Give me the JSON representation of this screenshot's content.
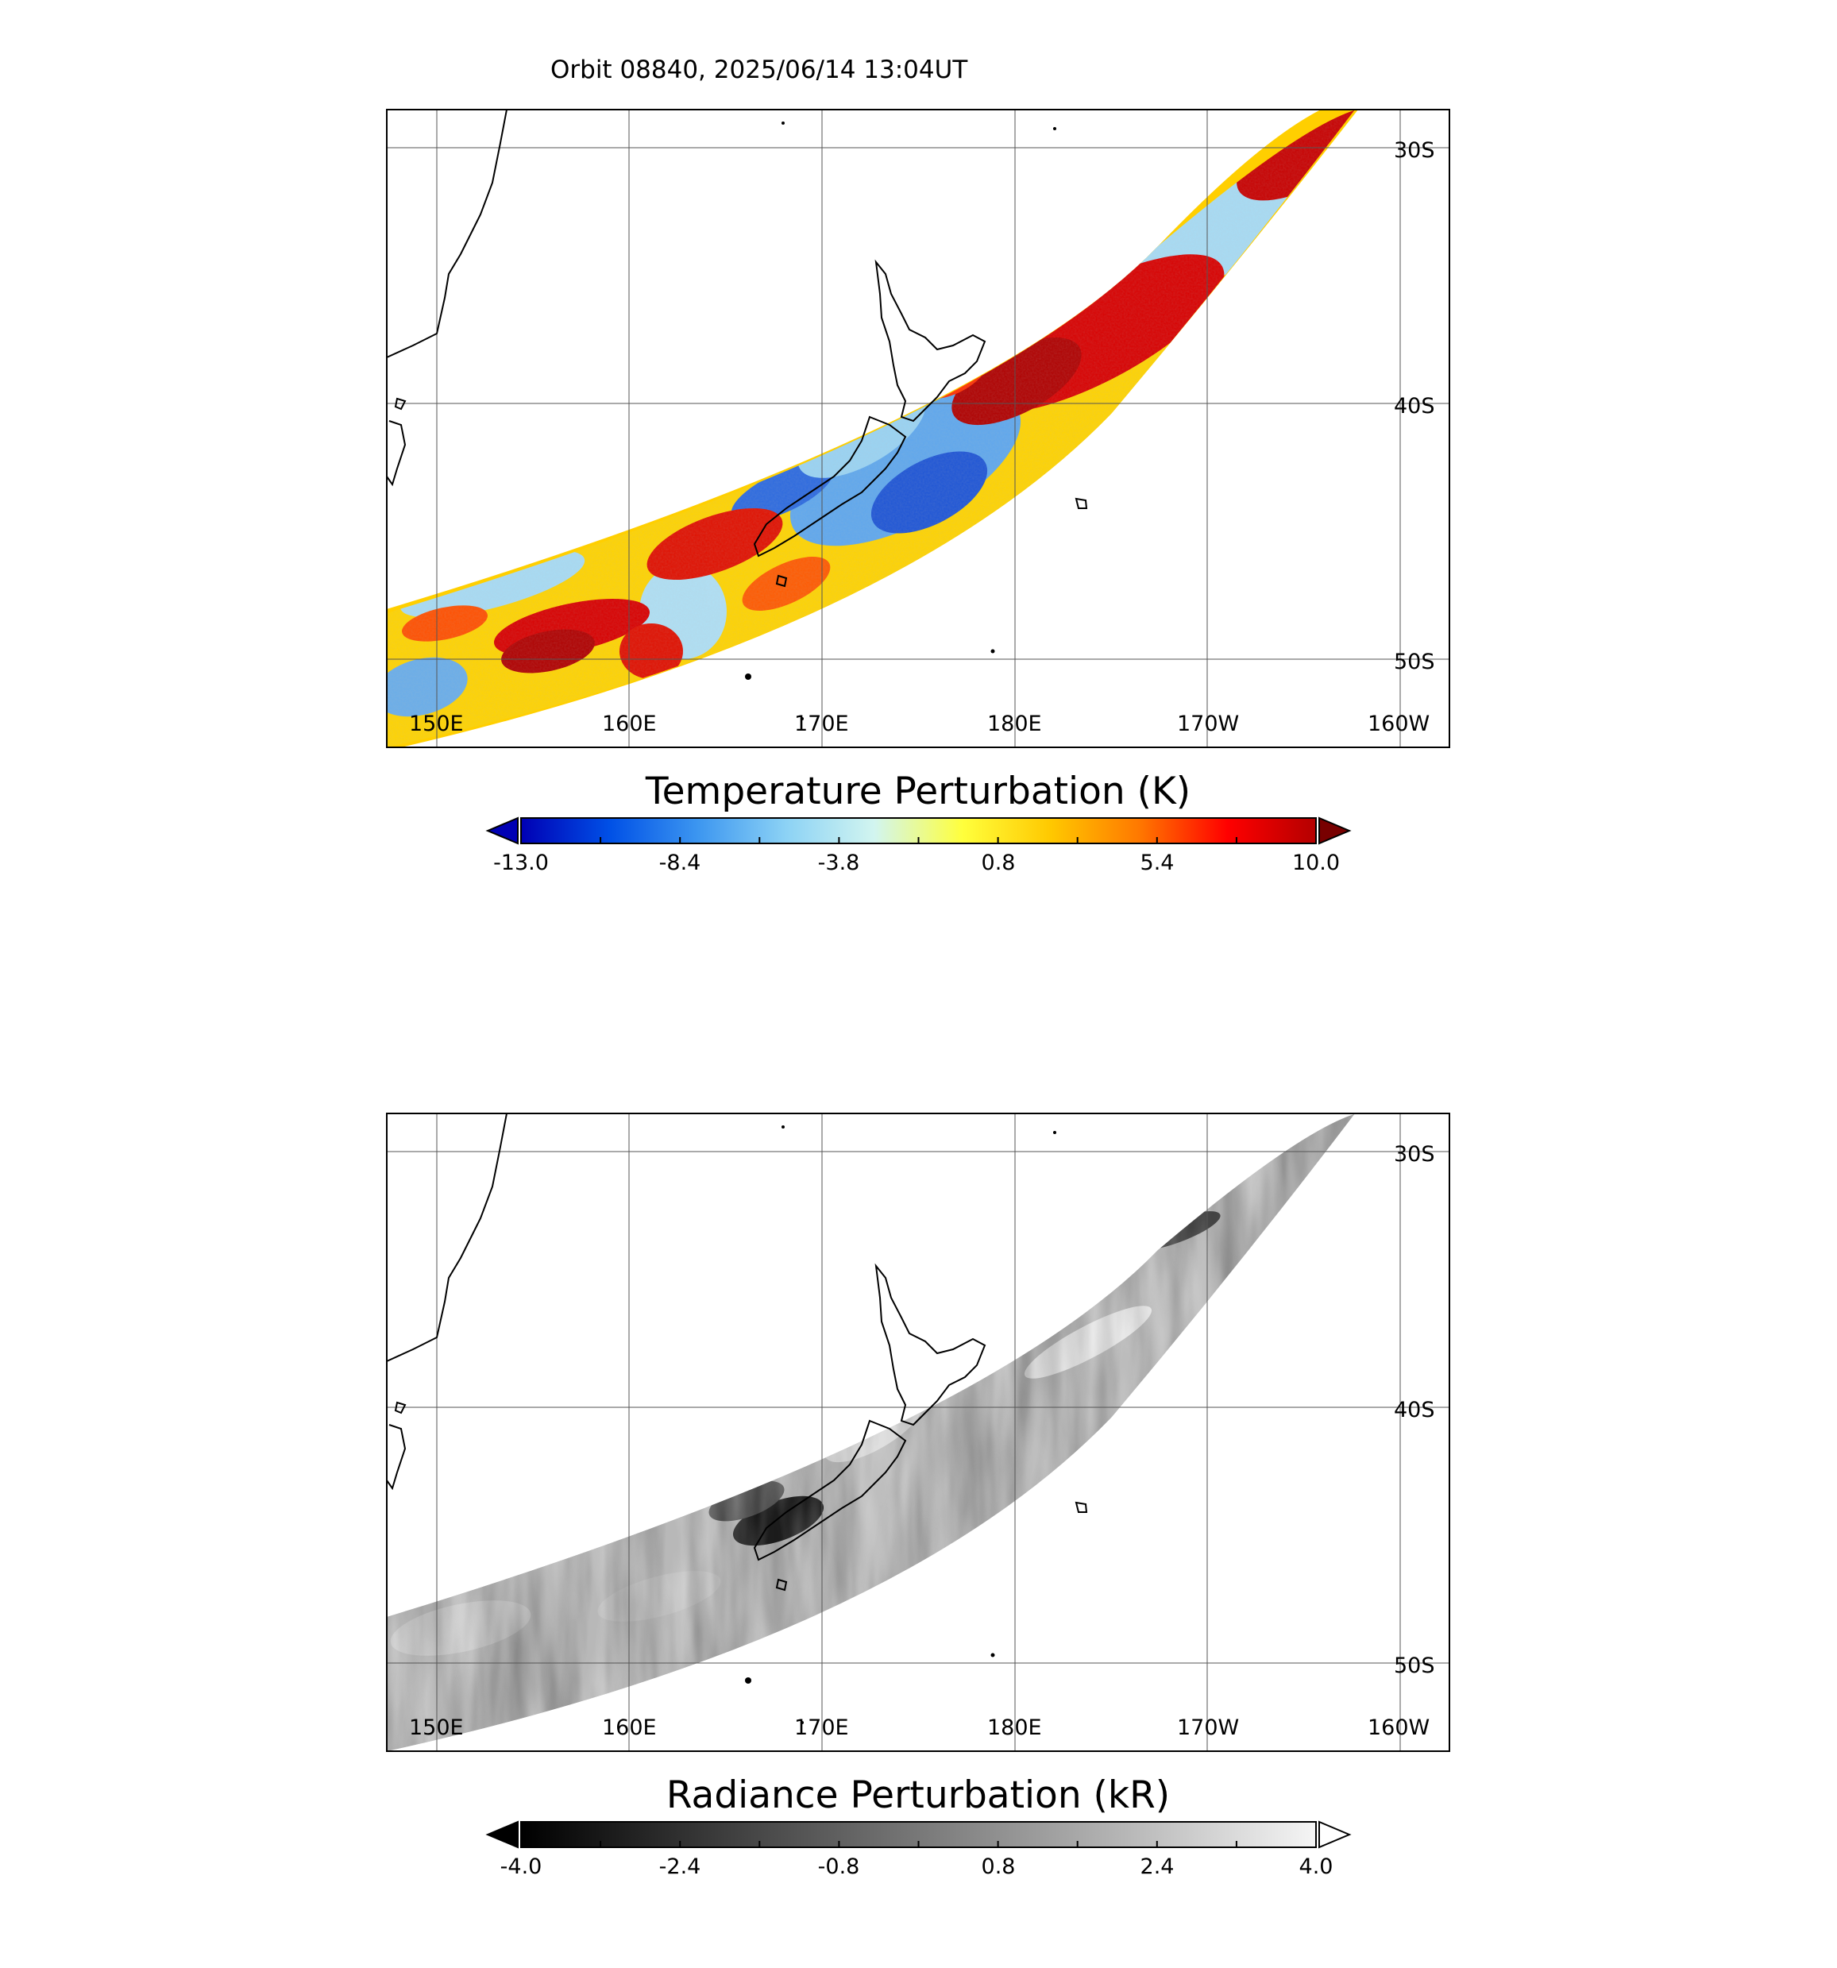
{
  "header": {
    "orbit_title": "Orbit 08840, 2025/06/14 13:04UT"
  },
  "map": {
    "lon_labels": [
      "150E",
      "160E",
      "170E",
      "180E",
      "170W",
      "160W"
    ],
    "lat_labels": [
      "30S",
      "40S",
      "50S"
    ]
  },
  "panels": [
    {
      "id": "temperature",
      "colorbar_title": "Temperature Perturbation (K)",
      "colormap": [
        "#0000b4",
        "#0050e6",
        "#3c96f0",
        "#8cd2f5",
        "#d2f5f0",
        "#ffff3c",
        "#ffc800",
        "#ff7800",
        "#ff0000",
        "#b40000"
      ],
      "extend_low_color": "#0000b4",
      "extend_high_color": "#780000",
      "tick_labels": [
        "-13.0",
        "-8.4",
        "-3.8",
        "0.8",
        "5.4",
        "10.0"
      ],
      "minor_ticks": 10
    },
    {
      "id": "radiance",
      "colorbar_title": "Radiance Perturbation (kR)",
      "colormap": [
        "#000000",
        "#3c3c3c",
        "#787878",
        "#b4b4b4",
        "#f5f5f5"
      ],
      "extend_low_color": "#000000",
      "extend_high_color": "#ffffff",
      "tick_labels": [
        "-4.0",
        "-2.4",
        "-0.8",
        "0.8",
        "2.4",
        "4.0"
      ],
      "minor_ticks": 10
    }
  ]
}
